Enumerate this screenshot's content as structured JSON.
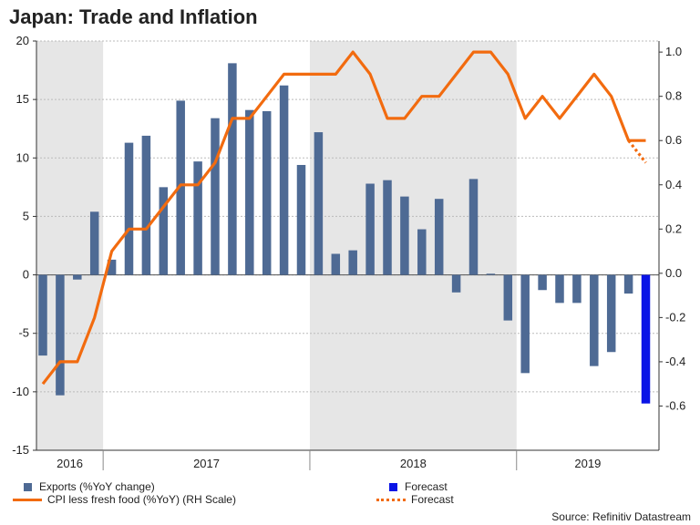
{
  "chart_data": {
    "type": "bar+line",
    "title": "Japan: Trade and Inflation",
    "source": "Source: Refinitiv Datastream",
    "y_left": {
      "range": [
        -15,
        20
      ],
      "ticks": [
        -15,
        -10,
        -5,
        0,
        5,
        10,
        15,
        20
      ],
      "tick_labels": [
        "-15",
        "-10",
        "-5",
        "0",
        "5",
        "10",
        "15",
        "20"
      ]
    },
    "y_right": {
      "range": [
        -0.8,
        1.05
      ],
      "ticks": [
        -0.6,
        -0.4,
        -0.2,
        0.0,
        0.2,
        0.4,
        0.6,
        0.8,
        1.0
      ],
      "tick_labels": [
        "-0.6",
        "-0.4",
        "-0.2",
        "0.0",
        "0.2",
        "0.4",
        "0.6",
        "0.8",
        "1.0"
      ]
    },
    "years": [
      "2016",
      "2017",
      "2018",
      "2019"
    ],
    "shaded_periods": [
      "2016",
      "2018"
    ],
    "categories": [
      "2016-09",
      "2016-10",
      "2016-11",
      "2016-12",
      "2017-01",
      "2017-02",
      "2017-03",
      "2017-04",
      "2017-05",
      "2017-06",
      "2017-07",
      "2017-08",
      "2017-09",
      "2017-10",
      "2017-11",
      "2017-12",
      "2018-01",
      "2018-02",
      "2018-03",
      "2018-04",
      "2018-05",
      "2018-06",
      "2018-07",
      "2018-08",
      "2018-09",
      "2018-10",
      "2018-11",
      "2018-12",
      "2019-01",
      "2019-02",
      "2019-03",
      "2019-04",
      "2019-05",
      "2019-06",
      "2019-07",
      "2019-08"
    ],
    "series": [
      {
        "name": "Exports (%YoY change)",
        "type": "bar",
        "axis": "left",
        "color": "#4e6a94",
        "values": [
          -6.9,
          -10.3,
          -0.4,
          5.4,
          1.3,
          11.3,
          11.9,
          7.5,
          14.9,
          9.7,
          13.4,
          18.1,
          14.1,
          14.0,
          16.2,
          9.4,
          12.2,
          1.8,
          2.1,
          7.8,
          8.1,
          6.7,
          3.9,
          6.5,
          -1.5,
          8.2,
          0.1,
          -3.9,
          -8.4,
          -1.3,
          -2.4,
          -2.4,
          -7.8,
          -6.6,
          -1.6,
          null
        ]
      },
      {
        "name": "Forecast",
        "type": "bar",
        "axis": "left",
        "color": "#0a14e6",
        "values": [
          null,
          null,
          null,
          null,
          null,
          null,
          null,
          null,
          null,
          null,
          null,
          null,
          null,
          null,
          null,
          null,
          null,
          null,
          null,
          null,
          null,
          null,
          null,
          null,
          null,
          null,
          null,
          null,
          null,
          null,
          null,
          null,
          null,
          null,
          null,
          -11.0
        ]
      },
      {
        "name": "CPI less fresh food (%YoY) (RH Scale)",
        "type": "line",
        "axis": "right",
        "color": "#f26b0f",
        "values": [
          -0.5,
          -0.4,
          -0.4,
          -0.2,
          0.1,
          0.2,
          0.2,
          0.3,
          0.4,
          0.4,
          0.5,
          0.7,
          0.7,
          0.8,
          0.9,
          0.9,
          0.9,
          0.9,
          1.0,
          0.9,
          0.7,
          0.7,
          0.8,
          0.8,
          0.9,
          1.0,
          1.0,
          0.9,
          0.7,
          0.8,
          0.7,
          0.8,
          0.9,
          0.8,
          0.6,
          0.6
        ]
      },
      {
        "name": "Forecast",
        "type": "line-dotted",
        "axis": "right",
        "color": "#f26b0f",
        "values": [
          null,
          null,
          null,
          null,
          null,
          null,
          null,
          null,
          null,
          null,
          null,
          null,
          null,
          null,
          null,
          null,
          null,
          null,
          null,
          null,
          null,
          null,
          null,
          null,
          null,
          null,
          null,
          null,
          null,
          null,
          null,
          null,
          null,
          null,
          0.6,
          0.5
        ]
      }
    ]
  },
  "legend": {
    "exports": "Exports (%YoY change)",
    "exports_forecast": "Forecast",
    "cpi": "CPI less fresh food (%YoY) (RH Scale)",
    "cpi_forecast": "Forecast"
  },
  "colors": {
    "bar": "#4e6a94",
    "bar_forecast": "#0a14e6",
    "line": "#f26b0f",
    "shade": "#e6e6e6"
  }
}
